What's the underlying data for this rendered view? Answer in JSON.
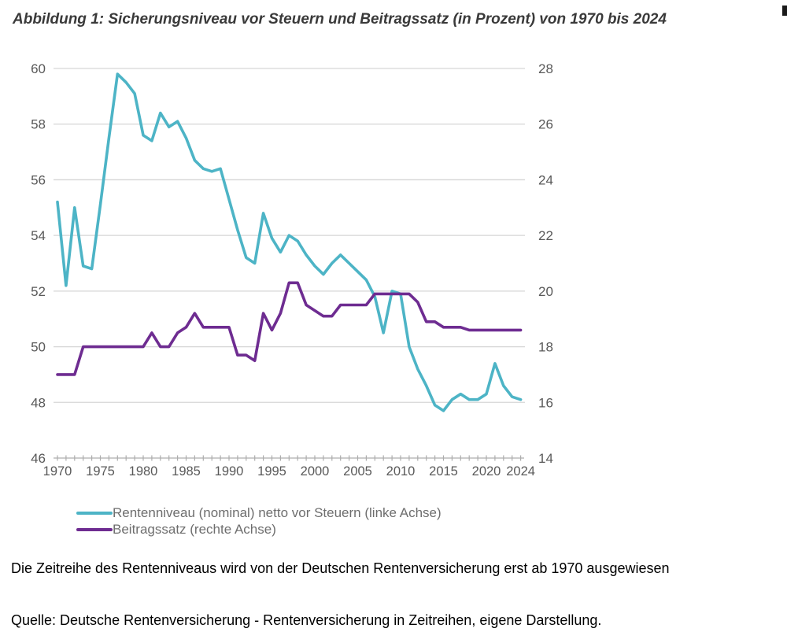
{
  "title": "Abbildung 1: Sicherungsniveau vor Steuern und Beitragssatz (in Prozent) von 1970 bis 2024",
  "chart_data": {
    "type": "line",
    "x": [
      1970,
      1971,
      1972,
      1973,
      1974,
      1975,
      1976,
      1977,
      1978,
      1979,
      1980,
      1981,
      1982,
      1983,
      1984,
      1985,
      1986,
      1987,
      1988,
      1989,
      1990,
      1991,
      1992,
      1993,
      1994,
      1995,
      1996,
      1997,
      1998,
      1999,
      2000,
      2001,
      2002,
      2003,
      2004,
      2005,
      2006,
      2007,
      2008,
      2009,
      2010,
      2011,
      2012,
      2013,
      2014,
      2015,
      2016,
      2017,
      2018,
      2019,
      2020,
      2021,
      2022,
      2023,
      2024
    ],
    "series": [
      {
        "name": "Rentenniveau (nominal) netto vor Steuern (linke Achse)",
        "axis": "left",
        "color": "#4db4c6",
        "values": [
          55.2,
          52.2,
          55.0,
          52.9,
          52.8,
          55.1,
          57.5,
          59.8,
          59.5,
          59.1,
          57.6,
          57.4,
          58.4,
          57.9,
          58.1,
          57.5,
          56.7,
          56.4,
          56.3,
          56.4,
          55.3,
          54.2,
          53.2,
          53.0,
          54.8,
          53.9,
          53.4,
          54.0,
          53.8,
          53.3,
          52.9,
          52.6,
          53.0,
          53.3,
          53.0,
          52.7,
          52.4,
          51.8,
          50.5,
          52.0,
          51.9,
          50.0,
          49.2,
          48.6,
          47.9,
          47.7,
          48.1,
          48.3,
          48.1,
          48.1,
          48.3,
          49.4,
          48.6,
          48.2,
          48.1
        ]
      },
      {
        "name": "Beitragssatz (rechte Achse)",
        "axis": "right",
        "color": "#6e2c91",
        "values": [
          17.0,
          17.0,
          17.0,
          18.0,
          18.0,
          18.0,
          18.0,
          18.0,
          18.0,
          18.0,
          18.0,
          18.5,
          18.0,
          18.0,
          18.5,
          18.7,
          19.2,
          18.7,
          18.7,
          18.7,
          18.7,
          17.7,
          17.7,
          17.5,
          19.2,
          18.6,
          19.2,
          20.3,
          20.3,
          19.5,
          19.3,
          19.1,
          19.1,
          19.5,
          19.5,
          19.5,
          19.5,
          19.9,
          19.9,
          19.9,
          19.9,
          19.9,
          19.6,
          18.9,
          18.9,
          18.7,
          18.7,
          18.7,
          18.6,
          18.6,
          18.6,
          18.6,
          18.6,
          18.6,
          18.6
        ]
      }
    ],
    "left_axis": {
      "ticks": [
        60,
        58,
        56,
        54,
        52,
        50,
        48,
        46
      ],
      "range": [
        46,
        60
      ]
    },
    "right_axis": {
      "ticks": [
        28,
        26,
        24,
        22,
        20,
        18,
        16,
        14
      ],
      "range": [
        14,
        28
      ]
    },
    "x_axis": {
      "labeled_ticks": [
        1970,
        1975,
        1980,
        1985,
        1990,
        1995,
        2000,
        2005,
        2010,
        2015,
        2020,
        2024
      ],
      "range": [
        1970,
        2024
      ],
      "tick_every_year": true
    },
    "grid": true,
    "legend_position": "bottom-left"
  },
  "legend": {
    "items": [
      {
        "label": "Rentenniveau (nominal) netto vor Steuern (linke Achse)",
        "color": "#4db4c6"
      },
      {
        "label": "Beitragssatz (rechte Achse)",
        "color": "#6e2c91"
      }
    ]
  },
  "notes": {
    "note1": "Die Zeitreihe des Rentenniveaus wird von der Deutschen Rentenversicherung erst ab 1970 ausgewiesen",
    "source": "Quelle: Deutsche Rentenversicherung - Rentenversicherung in Zeitreihen, eigene Darstellung."
  },
  "colors": {
    "rentenniveau_line": "#4db4c6",
    "beitragssatz_line": "#6e2c91",
    "gridline": "#d6d6d6",
    "axis": "#adadad",
    "tick_label": "#595959",
    "legend_text": "#6e6e6e",
    "note_text": "#000000"
  }
}
